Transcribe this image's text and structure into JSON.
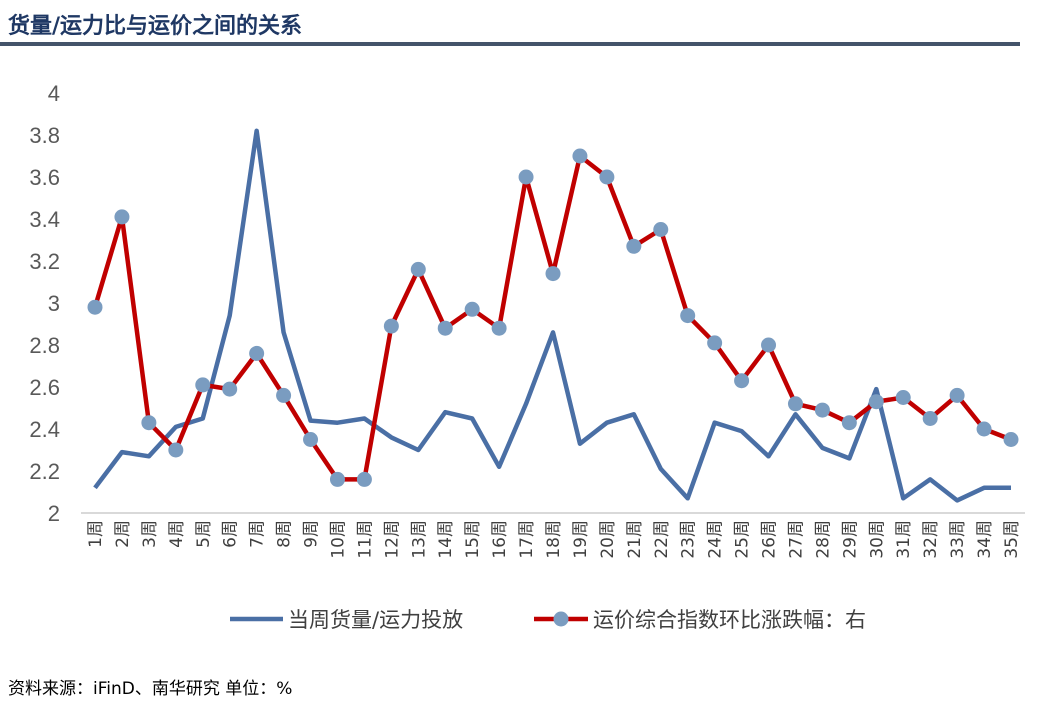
{
  "title": "货量/运力比与运价之间的关系",
  "source": "资料来源：iFinD、南华研究 单位：%",
  "colors": {
    "series1": "#4a6fa5",
    "series2": "#c00000",
    "marker": "#7a9cc0",
    "rule": "#44546a"
  },
  "chart_data": {
    "type": "line",
    "title": "",
    "ylim": [
      2,
      4
    ],
    "yticks": [
      "2",
      "2.2",
      "2.4",
      "2.6",
      "2.8",
      "3",
      "3.2",
      "3.4",
      "3.6",
      "3.8",
      "4"
    ],
    "grid": false,
    "legend": "bottom",
    "categories": [
      "1周",
      "2周",
      "3周",
      "4周",
      "5周",
      "6周",
      "7周",
      "8周",
      "9周",
      "10周",
      "11周",
      "12周",
      "13周",
      "14周",
      "15周",
      "16周",
      "17周",
      "18周",
      "19周",
      "20周",
      "21周",
      "22周",
      "23周",
      "24周",
      "25周",
      "26周",
      "27周",
      "28周",
      "29周",
      "30周",
      "31周",
      "32周",
      "33周",
      "34周",
      "35周"
    ],
    "series": [
      {
        "name": "当周货量/运力投放",
        "marker": "none",
        "values": [
          2.12,
          2.29,
          2.27,
          2.41,
          2.45,
          2.94,
          3.82,
          2.86,
          2.44,
          2.43,
          2.45,
          2.36,
          2.3,
          2.48,
          2.45,
          2.22,
          2.52,
          2.86,
          2.33,
          2.43,
          2.47,
          2.21,
          2.07,
          2.43,
          2.39,
          2.27,
          2.47,
          2.31,
          2.26,
          2.59,
          2.07,
          2.16,
          2.06,
          2.12,
          2.12
        ]
      },
      {
        "name": "运价综合指数环比涨跌幅：右",
        "marker": "circle",
        "values": [
          2.98,
          3.41,
          2.43,
          2.3,
          2.61,
          2.59,
          2.76,
          2.56,
          2.35,
          2.16,
          2.16,
          2.89,
          3.16,
          2.88,
          2.97,
          2.88,
          3.6,
          3.14,
          3.7,
          3.6,
          3.27,
          3.35,
          2.94,
          2.81,
          2.63,
          2.8,
          2.52,
          2.49,
          2.43,
          2.53,
          2.55,
          2.45,
          2.56,
          2.4,
          2.35
        ]
      }
    ]
  }
}
